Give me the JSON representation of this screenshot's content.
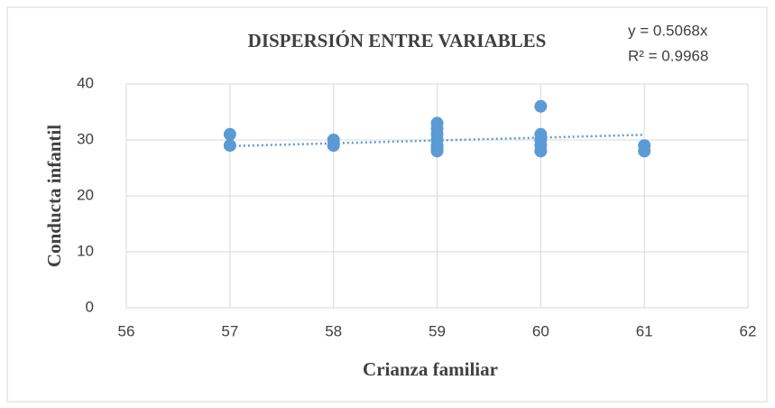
{
  "chart_data": {
    "type": "scatter",
    "title": "DISPERSIÓN ENTRE VARIABLES",
    "xlabel": "Crianza familiar",
    "ylabel": "Conducta infantil",
    "x": [
      57,
      57,
      58,
      58,
      59,
      59,
      59,
      59,
      59,
      59,
      59,
      60,
      60,
      60,
      60,
      60,
      61,
      61
    ],
    "values": [
      31,
      29,
      30,
      29,
      33,
      32,
      31,
      30,
      29,
      28.5,
      28,
      36,
      31,
      30,
      29,
      28,
      29,
      28
    ],
    "color": "#5b9bd5",
    "xlim": [
      56,
      62
    ],
    "xticks": [
      56,
      57,
      58,
      59,
      60,
      61,
      62
    ],
    "ylim": [
      0,
      40
    ],
    "yticks": [
      0,
      10,
      20,
      30,
      40
    ],
    "grid": true,
    "trendline": {
      "equation": "y = 0.5068x",
      "r2": "R² = 0.9968",
      "slope": 0.5068
    }
  }
}
